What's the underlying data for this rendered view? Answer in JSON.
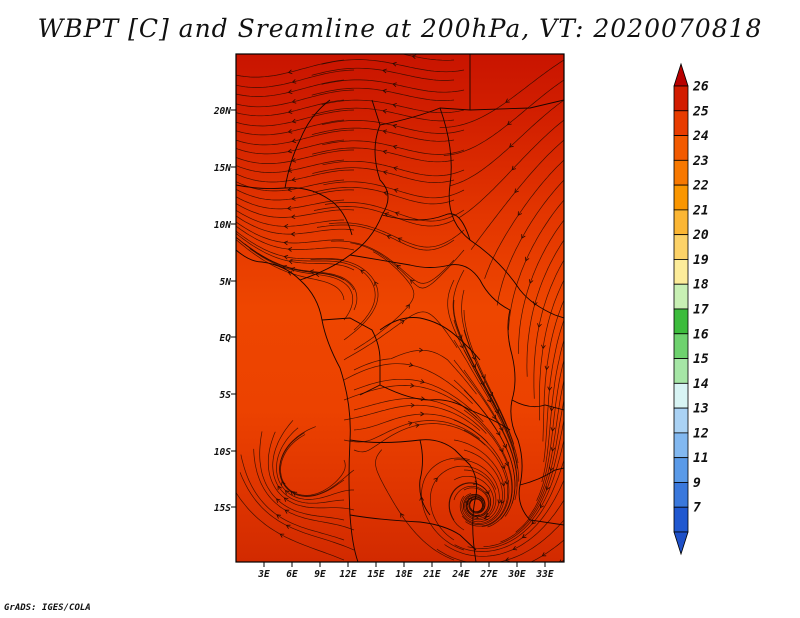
{
  "title": "WBPT [C] and Sreamline at 200hPa, VT: 2020070818",
  "credit": "GrADS: IGES/COLA",
  "map": {
    "variable": "WBPT",
    "units": "C",
    "level": "200hPa",
    "valid_time": "2020070818",
    "lat_labels": [
      "20N",
      "15N",
      "10N",
      "5N",
      "EQ",
      "5S",
      "10S",
      "15S"
    ],
    "lon_labels": [
      "3E",
      "6E",
      "9E",
      "12E",
      "15E",
      "18E",
      "21E",
      "24E",
      "27E",
      "30E",
      "33E"
    ]
  },
  "colorbar": {
    "labels": [
      "26",
      "25",
      "24",
      "23",
      "22",
      "21",
      "20",
      "19",
      "18",
      "17",
      "16",
      "15",
      "14",
      "13",
      "12",
      "11",
      "9",
      "7"
    ],
    "colors": [
      "#b80000",
      "#d21c00",
      "#e83c00",
      "#f25a00",
      "#f77800",
      "#fa9600",
      "#fbb634",
      "#fcd268",
      "#fcec9a",
      "#c8f0b4",
      "#3cbc3c",
      "#6ed26e",
      "#a6e6a6",
      "#d8f4f4",
      "#aad2f4",
      "#82b8f0",
      "#5a9ae8",
      "#3a78dc",
      "#2058d0",
      "#1e50c8"
    ]
  }
}
